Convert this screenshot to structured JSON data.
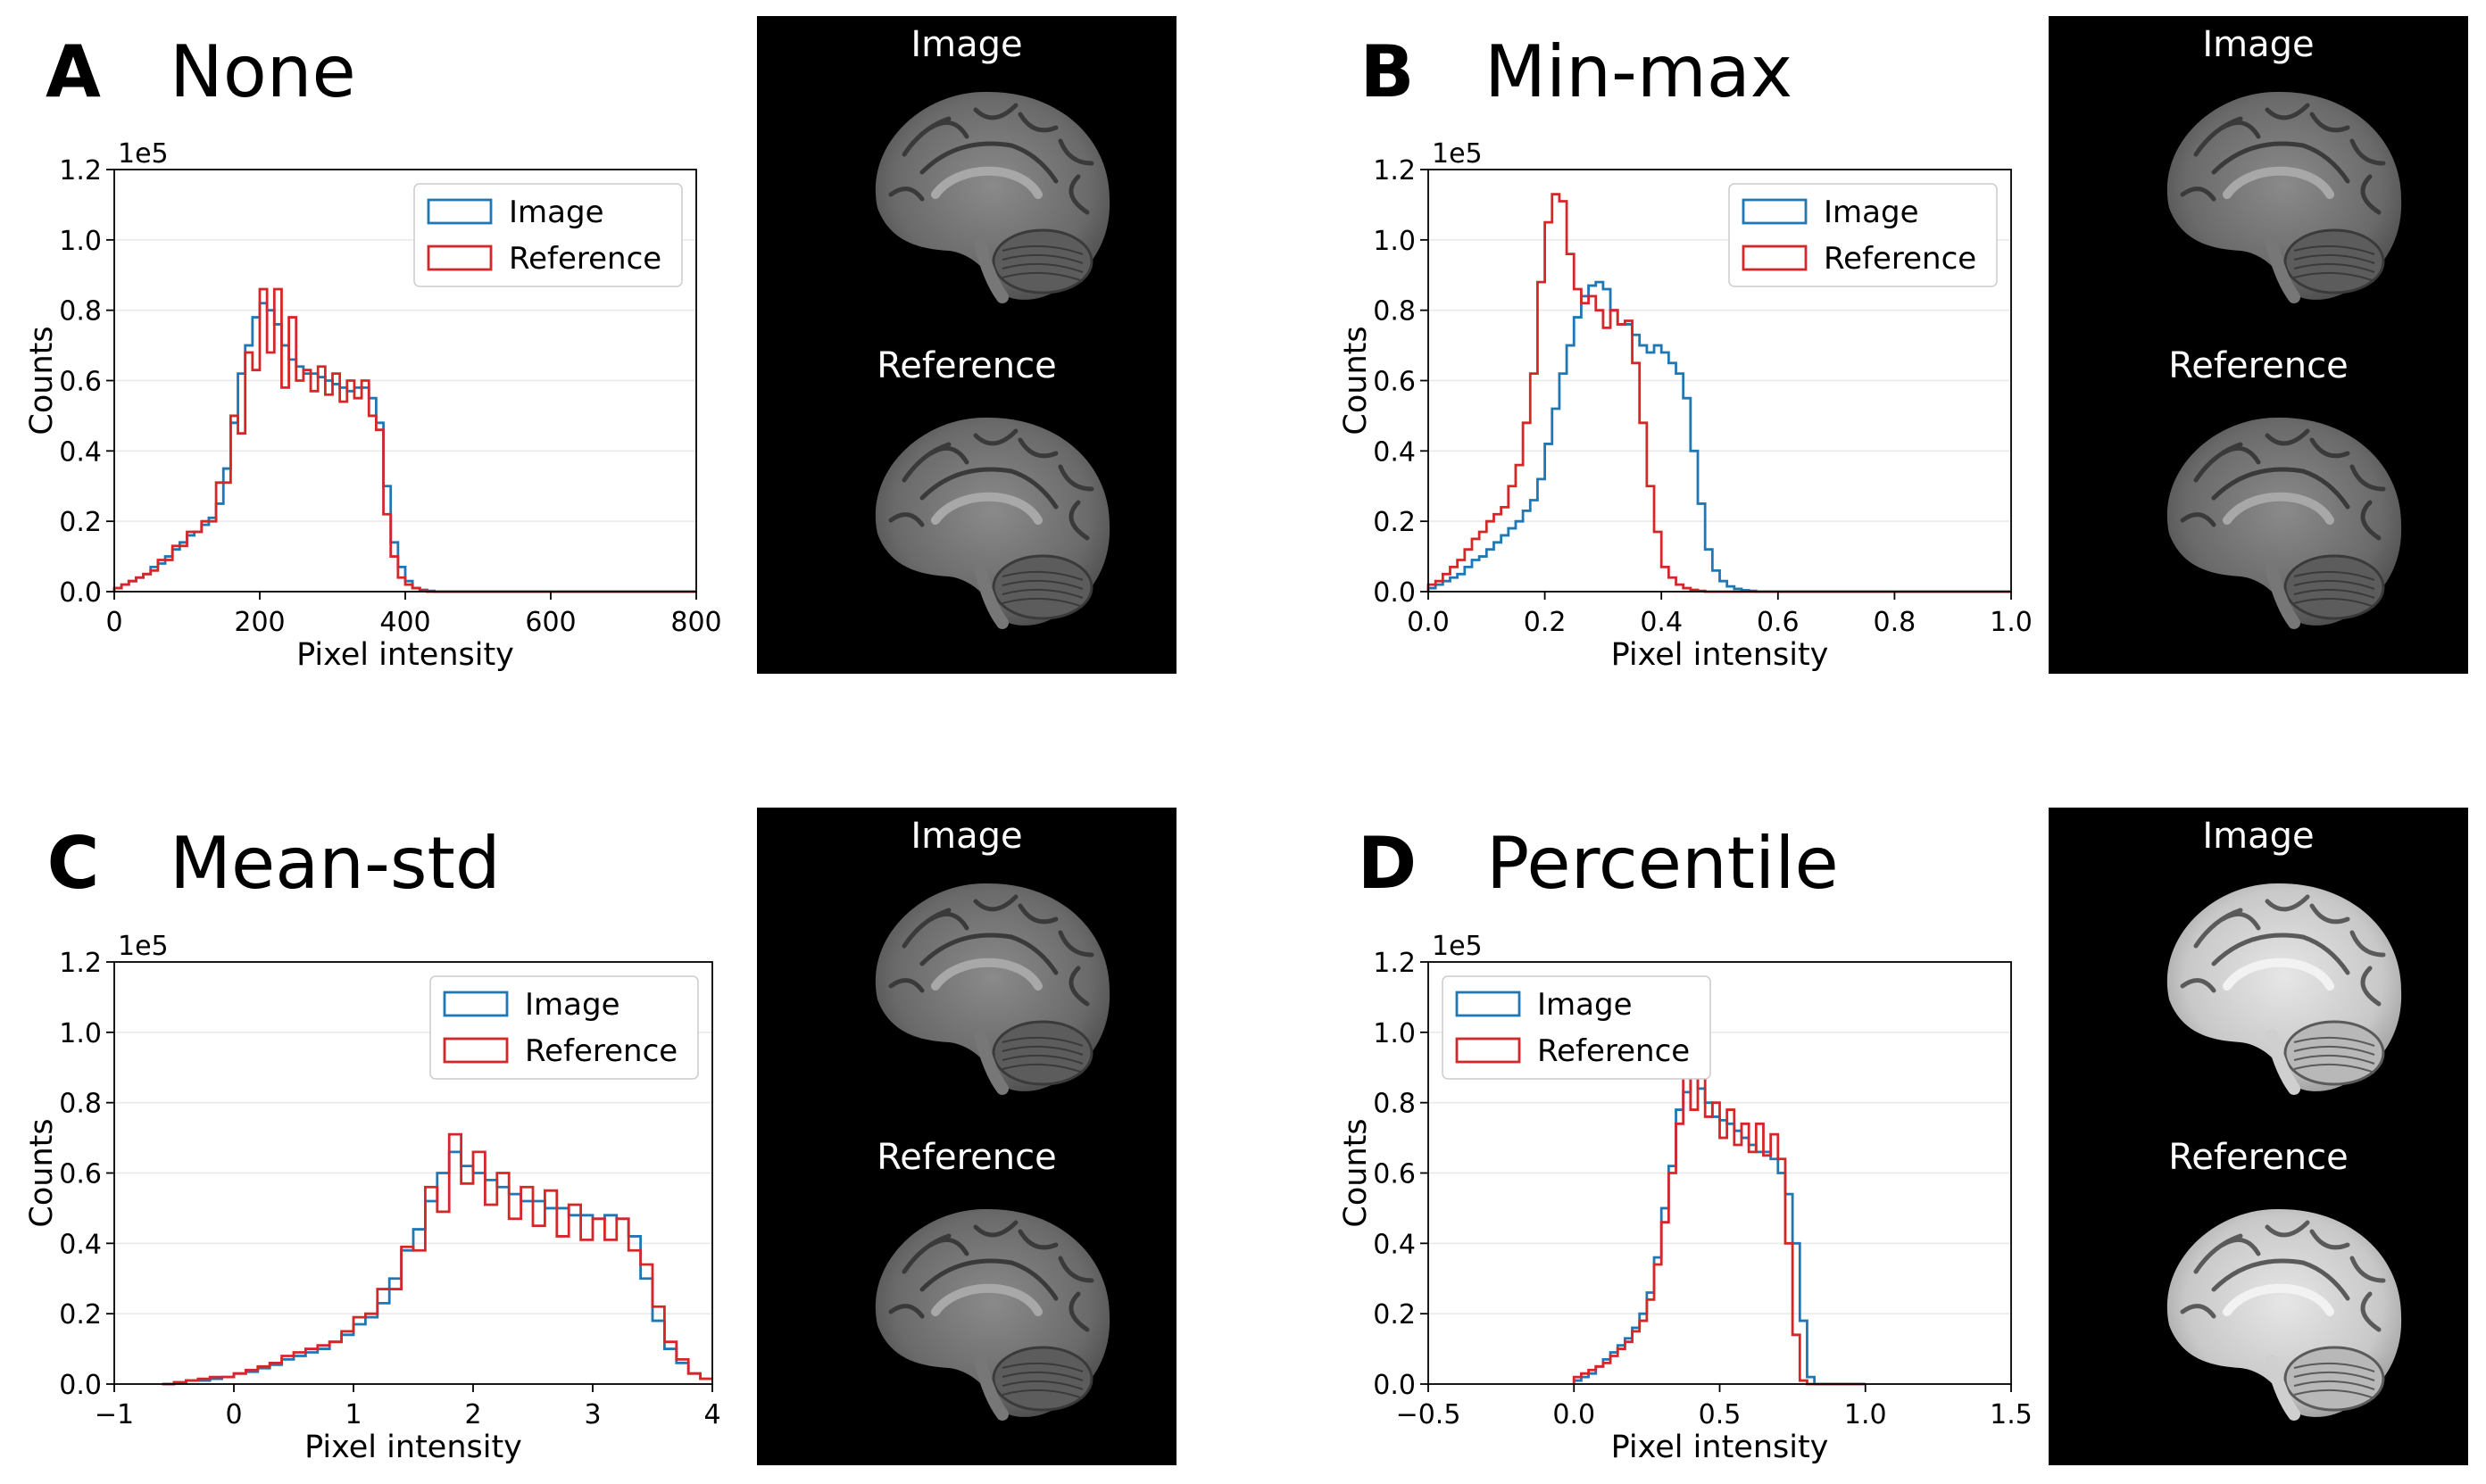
{
  "colors": {
    "image": "#1f77b4",
    "reference": "#d62728",
    "grid": "#e8e8e8"
  },
  "chart_data": [
    {
      "type": "histogram",
      "panel_letter": "A",
      "title": "None",
      "xlabel": "Pixel intensity",
      "ylabel": "Counts",
      "y_multiplier": "1e5",
      "xlim": [
        0,
        800
      ],
      "ylim": [
        0,
        1.2
      ],
      "xticks": [
        "0",
        "200",
        "400",
        "600",
        "800"
      ],
      "yticks": [
        "0.0",
        "0.2",
        "0.4",
        "0.6",
        "0.8",
        "1.0",
        "1.2"
      ],
      "grid": "horizontal",
      "legend": {
        "position": "top-right",
        "entries": [
          "Image",
          "Reference"
        ]
      },
      "bins": {
        "start": 0,
        "width": 10
      },
      "series": [
        {
          "name": "Image",
          "values": [
            0.01,
            0.02,
            0.03,
            0.04,
            0.05,
            0.07,
            0.08,
            0.1,
            0.12,
            0.14,
            0.16,
            0.17,
            0.19,
            0.21,
            0.25,
            0.35,
            0.48,
            0.62,
            0.7,
            0.78,
            0.82,
            0.8,
            0.76,
            0.7,
            0.66,
            0.64,
            0.62,
            0.62,
            0.61,
            0.6,
            0.59,
            0.58,
            0.57,
            0.58,
            0.58,
            0.55,
            0.48,
            0.3,
            0.14,
            0.07,
            0.03,
            0.01,
            0.005,
            0.002,
            0,
            0,
            0,
            0,
            0,
            0,
            0,
            0,
            0,
            0,
            0,
            0,
            0,
            0,
            0,
            0,
            0,
            0,
            0,
            0,
            0,
            0,
            0,
            0,
            0,
            0,
            0,
            0,
            0,
            0,
            0,
            0,
            0,
            0,
            0,
            0
          ]
        },
        {
          "name": "Reference",
          "values": [
            0.01,
            0.02,
            0.03,
            0.04,
            0.05,
            0.06,
            0.09,
            0.09,
            0.13,
            0.13,
            0.17,
            0.17,
            0.2,
            0.2,
            0.31,
            0.31,
            0.5,
            0.45,
            0.68,
            0.63,
            0.86,
            0.68,
            0.86,
            0.58,
            0.78,
            0.6,
            0.63,
            0.57,
            0.64,
            0.56,
            0.62,
            0.54,
            0.6,
            0.55,
            0.6,
            0.5,
            0.46,
            0.22,
            0.1,
            0.04,
            0.02,
            0.01,
            0.003,
            0,
            0,
            0,
            0,
            0,
            0,
            0,
            0,
            0,
            0,
            0,
            0,
            0,
            0,
            0,
            0,
            0,
            0,
            0,
            0,
            0,
            0,
            0,
            0,
            0,
            0,
            0,
            0,
            0,
            0,
            0,
            0,
            0,
            0,
            0,
            0,
            0
          ]
        }
      ],
      "inset": {
        "labels": [
          "Image",
          "Reference"
        ],
        "variant": "dark"
      }
    },
    {
      "type": "histogram",
      "panel_letter": "B",
      "title": "Min-max",
      "xlabel": "Pixel intensity",
      "ylabel": "Counts",
      "y_multiplier": "1e5",
      "xlim": [
        0,
        1.0
      ],
      "ylim": [
        0,
        1.2
      ],
      "xticks": [
        "0.0",
        "0.2",
        "0.4",
        "0.6",
        "0.8",
        "1.0"
      ],
      "yticks": [
        "0.0",
        "0.2",
        "0.4",
        "0.6",
        "0.8",
        "1.0",
        "1.2"
      ],
      "grid": "horizontal",
      "legend": {
        "position": "top-right",
        "entries": [
          "Image",
          "Reference"
        ]
      },
      "bins": {
        "start": 0,
        "width": 0.0125
      },
      "series": [
        {
          "name": "Image",
          "values": [
            0.01,
            0.02,
            0.03,
            0.04,
            0.05,
            0.07,
            0.09,
            0.1,
            0.12,
            0.14,
            0.16,
            0.18,
            0.2,
            0.23,
            0.26,
            0.32,
            0.42,
            0.52,
            0.62,
            0.7,
            0.78,
            0.84,
            0.87,
            0.88,
            0.86,
            0.8,
            0.76,
            0.76,
            0.73,
            0.7,
            0.68,
            0.7,
            0.68,
            0.65,
            0.62,
            0.55,
            0.4,
            0.25,
            0.12,
            0.06,
            0.03,
            0.015,
            0.008,
            0.004,
            0.002,
            0,
            0,
            0,
            0,
            0,
            0,
            0,
            0,
            0,
            0,
            0,
            0,
            0,
            0,
            0,
            0,
            0,
            0,
            0,
            0,
            0,
            0,
            0,
            0,
            0,
            0,
            0,
            0,
            0,
            0,
            0,
            0,
            0,
            0,
            0
          ]
        },
        {
          "name": "Reference",
          "values": [
            0.02,
            0.03,
            0.05,
            0.07,
            0.09,
            0.12,
            0.15,
            0.17,
            0.2,
            0.22,
            0.24,
            0.3,
            0.36,
            0.48,
            0.62,
            0.88,
            1.05,
            1.13,
            1.11,
            0.96,
            0.86,
            0.82,
            0.84,
            0.8,
            0.75,
            0.8,
            0.76,
            0.77,
            0.65,
            0.48,
            0.3,
            0.17,
            0.07,
            0.04,
            0.02,
            0.01,
            0.005,
            0.002,
            0,
            0,
            0,
            0,
            0,
            0,
            0,
            0,
            0,
            0,
            0,
            0,
            0,
            0,
            0,
            0,
            0,
            0,
            0,
            0,
            0,
            0,
            0,
            0,
            0,
            0,
            0,
            0,
            0,
            0,
            0,
            0,
            0,
            0,
            0,
            0,
            0,
            0,
            0,
            0,
            0,
            0
          ]
        }
      ],
      "inset": {
        "labels": [
          "Image",
          "Reference"
        ],
        "variant": "dark"
      }
    },
    {
      "type": "histogram",
      "panel_letter": "C",
      "title": "Mean-std",
      "xlabel": "Pixel intensity",
      "ylabel": "Counts",
      "y_multiplier": "1e5",
      "xlim": [
        -1,
        4
      ],
      "ylim": [
        0,
        1.2
      ],
      "xticks": [
        "−1",
        "0",
        "1",
        "2",
        "3",
        "4"
      ],
      "yticks": [
        "0.0",
        "0.2",
        "0.4",
        "0.6",
        "0.8",
        "1.0",
        "1.2"
      ],
      "grid": "horizontal",
      "legend": {
        "position": "top-right",
        "entries": [
          "Image",
          "Reference"
        ]
      },
      "bins": {
        "start": -0.6,
        "width": 0.1
      },
      "series": [
        {
          "name": "Image",
          "values": [
            0,
            0.005,
            0.01,
            0.01,
            0.015,
            0.02,
            0.03,
            0.035,
            0.045,
            0.055,
            0.07,
            0.08,
            0.09,
            0.1,
            0.12,
            0.14,
            0.17,
            0.19,
            0.23,
            0.3,
            0.38,
            0.44,
            0.52,
            0.6,
            0.66,
            0.62,
            0.6,
            0.58,
            0.56,
            0.54,
            0.52,
            0.52,
            0.5,
            0.5,
            0.48,
            0.48,
            0.47,
            0.48,
            0.47,
            0.42,
            0.3,
            0.18,
            0.1,
            0.06,
            0.03,
            0.015,
            0.005,
            0.002,
            0,
            0,
            0,
            0,
            0,
            0,
            0,
            0,
            0,
            0
          ]
        },
        {
          "name": "Reference",
          "values": [
            0,
            0.005,
            0.01,
            0.015,
            0.02,
            0.02,
            0.03,
            0.04,
            0.05,
            0.06,
            0.08,
            0.09,
            0.1,
            0.11,
            0.12,
            0.15,
            0.19,
            0.2,
            0.27,
            0.27,
            0.39,
            0.38,
            0.56,
            0.49,
            0.71,
            0.57,
            0.66,
            0.51,
            0.6,
            0.47,
            0.56,
            0.45,
            0.55,
            0.42,
            0.51,
            0.41,
            0.47,
            0.41,
            0.47,
            0.38,
            0.34,
            0.22,
            0.12,
            0.07,
            0.03,
            0.015,
            0.007,
            0.003,
            0,
            0,
            0,
            0,
            0,
            0,
            0,
            0,
            0,
            0
          ]
        }
      ],
      "inset": {
        "labels": [
          "Image",
          "Reference"
        ],
        "variant": "dark"
      }
    },
    {
      "type": "histogram",
      "panel_letter": "D",
      "title": "Percentile",
      "xlabel": "Pixel intensity",
      "ylabel": "Counts",
      "y_multiplier": "1e5",
      "xlim": [
        -0.5,
        1.5
      ],
      "ylim": [
        0,
        1.2
      ],
      "xticks": [
        "−0.5",
        "0.0",
        "0.5",
        "1.0",
        "1.5"
      ],
      "yticks": [
        "0.0",
        "0.2",
        "0.4",
        "0.6",
        "0.8",
        "1.0",
        "1.2"
      ],
      "grid": "horizontal",
      "legend": {
        "position": "top-left",
        "entries": [
          "Image",
          "Reference"
        ]
      },
      "bins": {
        "start": 0.0,
        "width": 0.025
      },
      "series": [
        {
          "name": "Image",
          "values": [
            0.01,
            0.02,
            0.03,
            0.05,
            0.07,
            0.09,
            0.11,
            0.13,
            0.16,
            0.2,
            0.26,
            0.36,
            0.5,
            0.62,
            0.78,
            0.83,
            0.88,
            0.84,
            0.8,
            0.76,
            0.75,
            0.74,
            0.72,
            0.7,
            0.68,
            0.66,
            0.66,
            0.64,
            0.6,
            0.54,
            0.4,
            0.18,
            0.02,
            0,
            0,
            0,
            0,
            0,
            0,
            0
          ]
        },
        {
          "name": "Reference",
          "values": [
            0.02,
            0.03,
            0.04,
            0.05,
            0.06,
            0.08,
            0.1,
            0.12,
            0.15,
            0.18,
            0.24,
            0.34,
            0.46,
            0.6,
            0.74,
            1.06,
            0.78,
            1.0,
            0.76,
            0.8,
            0.7,
            0.78,
            0.68,
            0.74,
            0.66,
            0.74,
            0.65,
            0.71,
            0.64,
            0.4,
            0.14,
            0.01,
            0,
            0,
            0,
            0,
            0,
            0,
            0,
            0
          ]
        }
      ],
      "inset": {
        "labels": [
          "Image",
          "Reference"
        ],
        "variant": "bright"
      }
    }
  ]
}
